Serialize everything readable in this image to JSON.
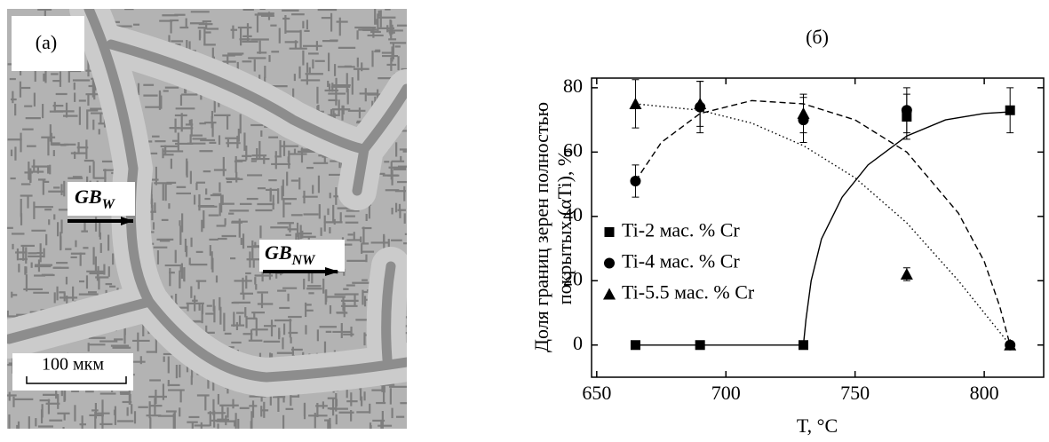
{
  "panel_a": {
    "label": "(a)",
    "annotations": [
      {
        "main": "GB",
        "sub": "W"
      },
      {
        "main": "GB",
        "sub": "NW"
      }
    ],
    "scale_bar": "100 мкм"
  },
  "chart_data": {
    "type": "scatter",
    "title": "(б)",
    "x_label": "T, °C",
    "y_label": [
      "Доля границ зерен полностью",
      "покрытых (αTi), %"
    ],
    "xlim": [
      648,
      823
    ],
    "ylim": [
      -10,
      83
    ],
    "xticks": [
      650,
      700,
      750,
      800
    ],
    "yticks": [
      0,
      20,
      40,
      60,
      80
    ],
    "legend": "center left",
    "series": [
      {
        "name": "Ti-2 мас. % Cr",
        "color": "#000000",
        "marker": "square",
        "x": [
          665,
          690,
          730,
          770,
          810
        ],
        "values": [
          0,
          0,
          0,
          71,
          73
        ],
        "errors": [
          null,
          null,
          null,
          7,
          7
        ],
        "fit": {
          "style": "solid",
          "x": [
            665,
            730,
            731,
            733,
            737,
            745,
            755,
            770,
            785,
            800,
            810
          ],
          "y": [
            0,
            0,
            8,
            20,
            33,
            46,
            56,
            65,
            70,
            72,
            72.5
          ]
        }
      },
      {
        "name": "Ti-4 мас. % Cr",
        "color": "#000000",
        "marker": "circle",
        "x": [
          665,
          690,
          730,
          770,
          810
        ],
        "values": [
          51,
          74,
          70,
          73,
          0
        ],
        "errors": [
          5,
          8,
          7,
          7,
          null
        ],
        "fit": {
          "style": "dashed",
          "x": [
            665,
            675,
            690,
            710,
            730,
            750,
            770,
            790,
            800,
            806,
            810
          ],
          "y": [
            51,
            63,
            72,
            76,
            75,
            70,
            60,
            41,
            26,
            12,
            0
          ]
        }
      },
      {
        "name": "Ti-5.5 мас. % Cr",
        "color": "#000000",
        "marker": "triangle",
        "x": [
          665,
          690,
          730,
          770,
          810
        ],
        "values": [
          75,
          75,
          72,
          22,
          0
        ],
        "errors": [
          7.5,
          7,
          6,
          2,
          null
        ],
        "fit": {
          "style": "dotted",
          "x": [
            665,
            690,
            710,
            730,
            750,
            770,
            790,
            805,
            810
          ],
          "y": [
            75,
            73,
            69,
            62,
            52,
            38,
            20,
            5,
            0
          ]
        }
      }
    ]
  }
}
